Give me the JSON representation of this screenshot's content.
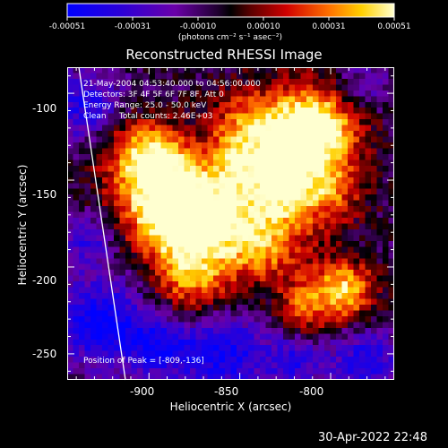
{
  "colorbar": {
    "tick_labels": [
      "-0.00051",
      "-0.00031",
      "-0.00010",
      "0.00010",
      "0.00031",
      "0.00051"
    ],
    "units_label": "(photons cm⁻² s⁻¹ asec⁻²)",
    "min": -0.00051,
    "max": 0.00051
  },
  "chart_data": {
    "type": "heatmap",
    "title": "Reconstructed RHESSI Image",
    "xlabel": "Heliocentric X (arcsec)",
    "ylabel": "Heliocentric Y (arcsec)",
    "xlim": [
      -945,
      -765
    ],
    "ylim": [
      -265,
      -85
    ],
    "x_ticks": [
      "-900",
      "-850",
      "-800"
    ],
    "y_ticks": [
      "-100",
      "-150",
      "-200",
      "-250"
    ],
    "annotations": {
      "time_range": "21-May-2004 04:53:40.000 to 04:56:00.000",
      "detectors": "Detectors: 3F 4F 5F 6F 7F 8F, Att 0",
      "energy_range": "Energy Range: 25.0 - 50.0 keV",
      "clean_counts": "Clean     Total counts: 2.46E+03",
      "peak_position": "Position of Peak = [-809,-136]"
    }
  },
  "footer": {
    "timestamp": "30-Apr-2022 22:48"
  }
}
